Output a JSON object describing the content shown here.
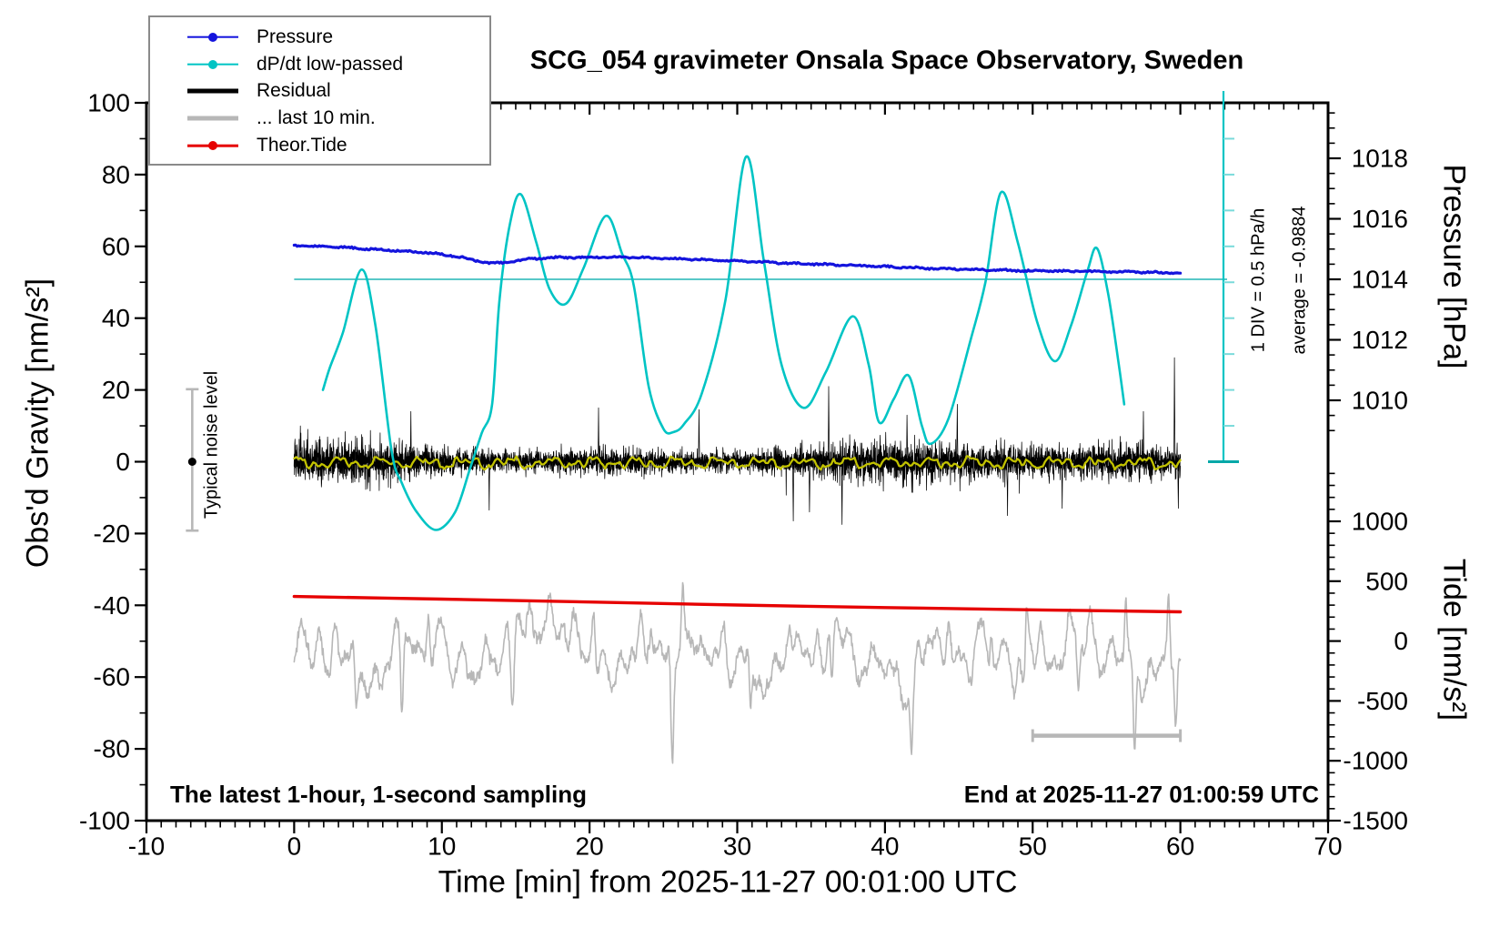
{
  "chart_data": {
    "type": "line",
    "title": "SCG_054 gravimeter Onsala Space Observatory, Sweden",
    "xlabel": "Time [min] from 2025-11-27 00:01:00 UTC",
    "axes": {
      "x": {
        "range": [
          -10,
          70
        ],
        "major_ticks": [
          -10,
          0,
          10,
          20,
          30,
          40,
          50,
          60,
          70
        ],
        "minor_step": 1
      },
      "left": {
        "label": "Obs'd Gravity [nm/s²]",
        "range": [
          -100,
          100
        ],
        "major_ticks": [
          100,
          80,
          60,
          40,
          20,
          0,
          -20,
          -40,
          -60,
          -80,
          -100
        ],
        "minor_step": 10
      },
      "right_pressure": {
        "label": "Pressure [hPa]",
        "major_ticks": [
          1018,
          1016,
          1014,
          1012,
          1010
        ],
        "minor_step": 0.5
      },
      "right_tide": {
        "label": "Tide [nm/s²]",
        "major_ticks": [
          1000,
          500,
          0,
          -500,
          -1000,
          -1500
        ],
        "minor_step": 100
      }
    },
    "legend": [
      {
        "label": "Pressure",
        "color": "#1414dd",
        "thick": false,
        "dot": true
      },
      {
        "label": "dP/dt low-passed",
        "color": "#00c4c4",
        "thick": false,
        "dot": true
      },
      {
        "label": "Residual",
        "color": "#000000",
        "thick": true,
        "dot": false
      },
      {
        "label": "... last 10 min.",
        "color": "#b7b7b7",
        "thick": true,
        "dot": false
      },
      {
        "label": "Theor.Tide",
        "color": "#e60000",
        "thick": false,
        "dot": true
      }
    ],
    "annotations": {
      "scale_div": "1 DIV = 0.5 hPa/h",
      "average": "average = -0.9884",
      "noise": "Typical noise level",
      "sampling_note": "The latest 1-hour, 1-second sampling",
      "end_note": "End at 2025-11-27 01:00:59 UTC"
    },
    "reference_pressure_hPa": 1014,
    "noise_bar": {
      "t_min": -6.9,
      "gravity_extent": [
        -19.2,
        20.2
      ],
      "dot_gravity": 0
    },
    "last10_marker_bar": {
      "t_span": [
        50,
        60
      ],
      "tide_level": -790
    },
    "scale_bar": {
      "t_pos": 62.9,
      "divisions": 10,
      "div_hPa_per_h": 0.5
    },
    "series": {
      "pressure": {
        "name": "Pressure",
        "color": "#1414dd",
        "axis": "pressure",
        "points_t_hPa": [
          [
            0,
            1015.13
          ],
          [
            1,
            1015.1
          ],
          [
            2,
            1015.08
          ],
          [
            3,
            1015.06
          ],
          [
            4,
            1015.04
          ],
          [
            5,
            1015.0
          ],
          [
            6,
            1014.98
          ],
          [
            7,
            1014.95
          ],
          [
            8,
            1014.91
          ],
          [
            9,
            1014.88
          ],
          [
            10,
            1014.82
          ],
          [
            11,
            1014.76
          ],
          [
            12,
            1014.65
          ],
          [
            13,
            1014.55
          ],
          [
            13.5,
            1014.52
          ],
          [
            14.5,
            1014.56
          ],
          [
            16,
            1014.68
          ],
          [
            18,
            1014.72
          ],
          [
            20,
            1014.73
          ],
          [
            22,
            1014.73
          ],
          [
            24,
            1014.71
          ],
          [
            26,
            1014.68
          ],
          [
            28,
            1014.64
          ],
          [
            30,
            1014.6
          ],
          [
            32,
            1014.56
          ],
          [
            34,
            1014.52
          ],
          [
            36,
            1014.49
          ],
          [
            38,
            1014.46
          ],
          [
            40,
            1014.42
          ],
          [
            42,
            1014.38
          ],
          [
            44,
            1014.35
          ],
          [
            46,
            1014.32
          ],
          [
            48,
            1014.3
          ],
          [
            50,
            1014.28
          ],
          [
            52,
            1014.27
          ],
          [
            54,
            1014.26
          ],
          [
            56,
            1014.25
          ],
          [
            58,
            1014.23
          ],
          [
            60,
            1014.21
          ]
        ]
      },
      "dpdt": {
        "name": "dP/dt low-passed",
        "color": "#00c4c4",
        "axis": "gravity",
        "points_t_nms2": [
          [
            1.95,
            20
          ],
          [
            2.4,
            26
          ],
          [
            3.3,
            36
          ],
          [
            4.55,
            53.5
          ],
          [
            5.5,
            38
          ],
          [
            6.6,
            3
          ],
          [
            7.3,
            -6
          ],
          [
            8.3,
            -14
          ],
          [
            9.6,
            -19
          ],
          [
            10.9,
            -14
          ],
          [
            11.9,
            -2
          ],
          [
            12.7,
            8
          ],
          [
            13.4,
            16
          ],
          [
            13.9,
            45
          ],
          [
            14.6,
            66
          ],
          [
            15.35,
            74.5
          ],
          [
            16.4,
            61
          ],
          [
            17.3,
            48
          ],
          [
            18.4,
            44
          ],
          [
            19.6,
            54
          ],
          [
            21.1,
            68.5
          ],
          [
            22.2,
            58
          ],
          [
            23.0,
            49
          ],
          [
            24.0,
            21
          ],
          [
            25.0,
            9.2
          ],
          [
            25.7,
            8.3
          ],
          [
            26.4,
            10.5
          ],
          [
            27.6,
            19
          ],
          [
            29.2,
            45
          ],
          [
            30.6,
            85
          ],
          [
            31.8,
            56
          ],
          [
            33.0,
            27
          ],
          [
            34.5,
            15
          ],
          [
            36.0,
            25
          ],
          [
            37.8,
            40.5
          ],
          [
            38.9,
            27
          ],
          [
            39.6,
            11
          ],
          [
            40.6,
            17.5
          ],
          [
            41.6,
            24
          ],
          [
            42.5,
            10
          ],
          [
            43.1,
            5
          ],
          [
            44.3,
            12
          ],
          [
            45.8,
            34
          ],
          [
            46.8,
            50
          ],
          [
            47.85,
            75
          ],
          [
            49.0,
            61
          ],
          [
            50.3,
            39
          ],
          [
            51.5,
            28
          ],
          [
            52.6,
            38
          ],
          [
            53.7,
            53
          ],
          [
            54.35,
            59.5
          ],
          [
            55.1,
            47
          ],
          [
            55.8,
            28
          ],
          [
            56.2,
            16
          ]
        ]
      },
      "residual": {
        "name": "Residual",
        "color": "#000000",
        "axis": "gravity",
        "t_span": [
          0,
          60
        ],
        "sigma_nms2": 4.9,
        "spikes_t_nms2": [
          [
            7.9,
            14
          ],
          [
            13.2,
            -13.5
          ],
          [
            20.6,
            15
          ],
          [
            27.4,
            14.5
          ],
          [
            33.8,
            -16.5
          ],
          [
            34.9,
            -14
          ],
          [
            36.2,
            21
          ],
          [
            37.1,
            -17.5
          ],
          [
            41.5,
            13
          ],
          [
            44.9,
            16
          ],
          [
            48.3,
            -15
          ],
          [
            52.0,
            -13
          ],
          [
            57.5,
            14
          ],
          [
            59.6,
            29
          ],
          [
            59.85,
            -13
          ]
        ]
      },
      "residual_lp": {
        "name": "Residual low-passed",
        "color": "#c2c200",
        "axis": "gravity",
        "level_nms2": -0.3,
        "amplitude_nms2": 1.5,
        "t_span": [
          0,
          60
        ]
      },
      "last10": {
        "name": "... last 10 min.",
        "color": "#b7b7b7",
        "axis": "tide",
        "t_span": [
          0,
          60
        ],
        "center_tide": -90,
        "spikes_t_tide": [
          [
            4.2,
            -450
          ],
          [
            7.3,
            -780
          ],
          [
            9.1,
            380
          ],
          [
            14.8,
            -420
          ],
          [
            20.3,
            360
          ],
          [
            25.6,
            -800
          ],
          [
            26.3,
            480
          ],
          [
            30.9,
            -520
          ],
          [
            36.4,
            -430
          ],
          [
            41.8,
            -560
          ],
          [
            47.2,
            380
          ],
          [
            49.6,
            440
          ],
          [
            53.1,
            -420
          ],
          [
            56.3,
            540
          ],
          [
            56.9,
            -800
          ],
          [
            59.2,
            580
          ],
          [
            59.7,
            -650
          ]
        ]
      },
      "tide": {
        "name": "Theor.Tide",
        "color": "#e60000",
        "axis": "tide",
        "points_t_tide": [
          [
            0,
            372
          ],
          [
            10,
            350
          ],
          [
            20,
            326
          ],
          [
            30,
            301
          ],
          [
            40,
            280
          ],
          [
            50,
            261
          ],
          [
            60,
            244
          ]
        ]
      }
    }
  }
}
